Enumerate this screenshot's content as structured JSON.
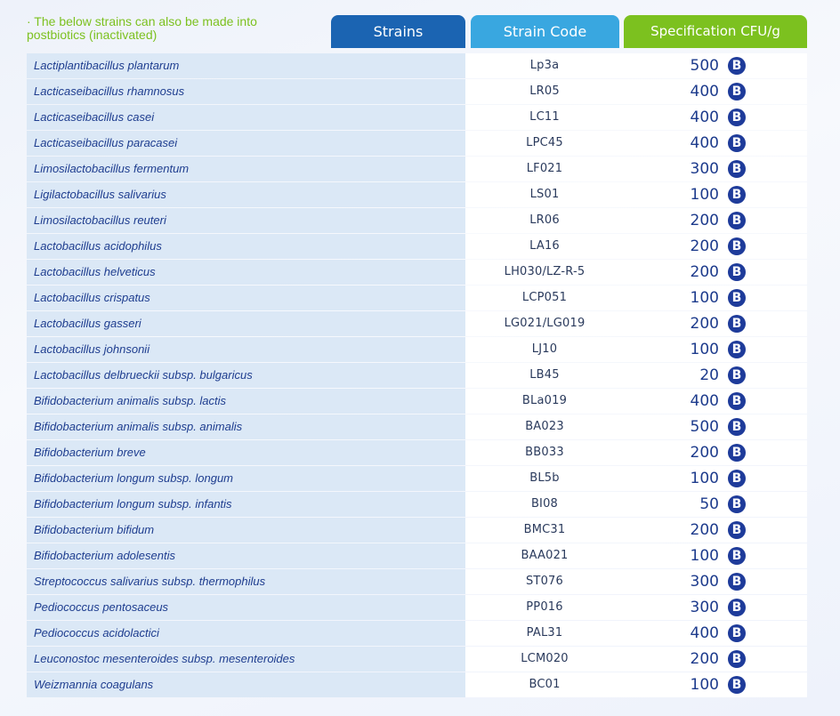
{
  "note": "· The below strains can also be made into postbiotics (inactivated)",
  "headers": {
    "strains": "Strains",
    "code": "Strain Code",
    "spec": "Specification CFU/g"
  },
  "unit_badge": "B",
  "colors": {
    "strains_header": "#1b64b2",
    "code_header": "#39a7e0",
    "spec_header": "#7cc11f",
    "badge": "#1e3b9a"
  },
  "rows": [
    {
      "strain": "Lactiplantibacillus plantarum",
      "code": "Lp3a",
      "spec": "500"
    },
    {
      "strain": "Lacticaseibacillus rhamnosus",
      "code": "LR05",
      "spec": "400"
    },
    {
      "strain": "Lacticaseibacillus casei",
      "code": "LC11",
      "spec": "400"
    },
    {
      "strain": "Lacticaseibacillus paracasei",
      "code": "LPC45",
      "spec": "400"
    },
    {
      "strain": "Limosilactobacillus fermentum",
      "code": "LF021",
      "spec": "300"
    },
    {
      "strain": "Ligilactobacillus salivarius",
      "code": "LS01",
      "spec": "100"
    },
    {
      "strain": "Limosilactobacillus reuteri",
      "code": "LR06",
      "spec": "200"
    },
    {
      "strain": "Lactobacillus acidophilus",
      "code": "LA16",
      "spec": "200"
    },
    {
      "strain": "Lactobacillus helveticus",
      "code": "LH030/LZ-R-5",
      "spec": "200"
    },
    {
      "strain": "Lactobacillus crispatus",
      "code": "LCP051",
      "spec": "100"
    },
    {
      "strain": "Lactobacillus gasseri",
      "code": "LG021/LG019",
      "spec": "200"
    },
    {
      "strain": "Lactobacillus johnsonii",
      "code": "LJ10",
      "spec": "100"
    },
    {
      "strain": "Lactobacillus delbrueckii subsp. bulgaricus",
      "code": "LB45",
      "spec": "20"
    },
    {
      "strain": "Bifidobacterium animalis subsp. lactis",
      "code": "BLa019",
      "spec": "400"
    },
    {
      "strain": "Bifidobacterium animalis subsp. animalis",
      "code": "BA023",
      "spec": "500"
    },
    {
      "strain": "Bifidobacterium breve",
      "code": "BB033",
      "spec": "200"
    },
    {
      "strain": "Bifidobacterium longum subsp. longum",
      "code": "BL5b",
      "spec": "100"
    },
    {
      "strain": "Bifidobacterium longum subsp. infantis",
      "code": "BI08",
      "spec": "50"
    },
    {
      "strain": "Bifidobacterium bifidum",
      "code": "BMC31",
      "spec": "200"
    },
    {
      "strain": "Bifidobacterium adolesentis",
      "code": "BAA021",
      "spec": "100"
    },
    {
      "strain": "Streptococcus salivarius subsp. thermophilus",
      "code": "ST076",
      "spec": "300"
    },
    {
      "strain": "Pediococcus pentosaceus",
      "code": "PP016",
      "spec": "300"
    },
    {
      "strain": "Pediococcus acidolactici",
      "code": "PAL31",
      "spec": "400"
    },
    {
      "strain": "Leuconostoc mesenteroides subsp. mesenteroides",
      "code": "LCM020",
      "spec": "200"
    },
    {
      "strain": "Weizmannia coagulans",
      "code": "BC01",
      "spec": "100"
    }
  ]
}
